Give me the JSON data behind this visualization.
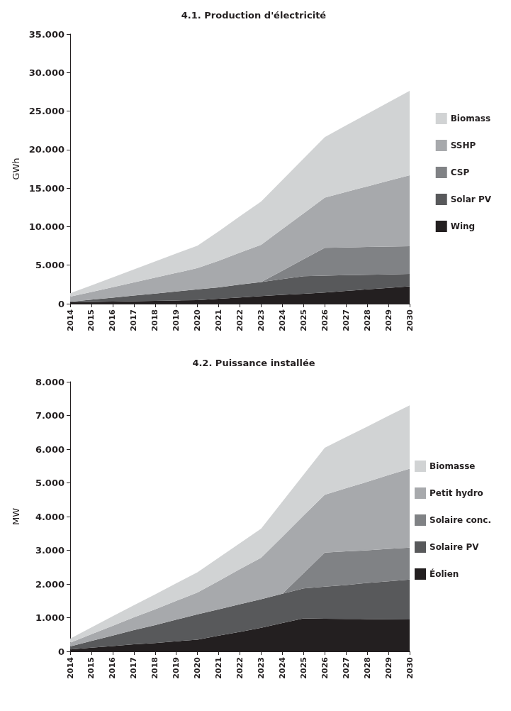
{
  "chart_data": [
    {
      "type": "area",
      "title": "4.1. Production d'électricité",
      "ylabel": "GWh",
      "stacked": true,
      "legend": "right",
      "grid": false,
      "marker": "none",
      "categories": [
        "2014",
        "2015",
        "2016",
        "2017",
        "2018",
        "2019",
        "2020",
        "2021",
        "2022",
        "2023",
        "2024",
        "2025",
        "2026",
        "2027",
        "2028",
        "2029",
        "2030"
      ],
      "ylim": [
        0,
        35000
      ],
      "yticks": [
        {
          "value": 0,
          "label": "0"
        },
        {
          "value": 5000,
          "label": "5.000"
        },
        {
          "value": 10000,
          "label": "10.000"
        },
        {
          "value": 15000,
          "label": "15.000"
        },
        {
          "value": 20000,
          "label": "20.000"
        },
        {
          "value": 25000,
          "label": "25.000"
        },
        {
          "value": 30000,
          "label": "30.000"
        },
        {
          "value": 35000,
          "label": "35.000"
        }
      ],
      "series": [
        {
          "name": "Wing",
          "color": "#231f20",
          "values": [
            180,
            230,
            280,
            330,
            370,
            420,
            470,
            640,
            810,
            980,
            1140,
            1300,
            1460,
            1660,
            1860,
            2060,
            2260
          ]
        },
        {
          "name": "Solar PV",
          "color": "#58595b",
          "values": [
            70,
            290,
            510,
            730,
            950,
            1170,
            1390,
            1470,
            1680,
            1820,
            2050,
            2270,
            2180,
            2040,
            1890,
            1740,
            1600
          ]
        },
        {
          "name": "CSP",
          "color": "#808285",
          "values": [
            0,
            0,
            0,
            0,
            0,
            0,
            0,
            0,
            0,
            0,
            1090,
            2200,
            3610,
            3600,
            3610,
            3610,
            3610
          ]
        },
        {
          "name": "SSHP",
          "color": "#a7a9ac",
          "values": [
            660,
            1010,
            1360,
            1710,
            2060,
            2410,
            2760,
            3460,
            4150,
            4850,
            5410,
            5960,
            6520,
            7200,
            7870,
            8540,
            9210
          ]
        },
        {
          "name": "Biomass",
          "color": "#d1d3d4",
          "values": [
            440,
            850,
            1260,
            1680,
            2100,
            2510,
            2920,
            3820,
            4710,
            5610,
            6360,
            7110,
            7860,
            8630,
            9410,
            10190,
            10960
          ]
        }
      ]
    },
    {
      "type": "area",
      "title": "4.2. Puissance installée",
      "ylabel": "MW",
      "stacked": true,
      "legend": "right",
      "grid": false,
      "marker": "none",
      "categories": [
        "2014",
        "2015",
        "2016",
        "2017",
        "2018",
        "2019",
        "2020",
        "2021",
        "2022",
        "2023",
        "2024",
        "2025",
        "2026",
        "2027",
        "2028",
        "2029",
        "2030"
      ],
      "ylim": [
        0,
        8000
      ],
      "yticks": [
        {
          "value": 0,
          "label": "0"
        },
        {
          "value": 1000,
          "label": "1.000"
        },
        {
          "value": 2000,
          "label": "2.000"
        },
        {
          "value": 3000,
          "label": "3.000"
        },
        {
          "value": 4000,
          "label": "4.000"
        },
        {
          "value": 5000,
          "label": "5.000"
        },
        {
          "value": 6000,
          "label": "6.000"
        },
        {
          "value": 7000,
          "label": "7.000"
        },
        {
          "value": 8000,
          "label": "8.000"
        }
      ],
      "series": [
        {
          "name": "Éolien",
          "color": "#231f20",
          "values": [
            60,
            110,
            160,
            210,
            250,
            300,
            350,
            470,
            580,
            700,
            840,
            980,
            970,
            965,
            960,
            955,
            950
          ]
        },
        {
          "name": "Solaire PV",
          "color": "#58595b",
          "values": [
            90,
            200,
            310,
            420,
            530,
            640,
            750,
            780,
            820,
            850,
            870,
            890,
            950,
            1005,
            1070,
            1125,
            1180
          ]
        },
        {
          "name": "Solaire conc.",
          "color": "#808285",
          "values": [
            0,
            0,
            0,
            0,
            0,
            0,
            0,
            0,
            0,
            0,
            0,
            450,
            1010,
            1000,
            970,
            960,
            950
          ]
        },
        {
          "name": "Petit hydro",
          "color": "#a7a9ac",
          "values": [
            110,
            200,
            290,
            380,
            470,
            560,
            650,
            840,
            1040,
            1230,
            1690,
            1710,
            1720,
            1870,
            2030,
            2190,
            2340
          ]
        },
        {
          "name": "Biomasse",
          "color": "#d1d3d4",
          "values": [
            120,
            200,
            280,
            360,
            440,
            520,
            600,
            690,
            770,
            860,
            1040,
            1210,
            1390,
            1520,
            1640,
            1760,
            1880
          ]
        }
      ]
    }
  ]
}
